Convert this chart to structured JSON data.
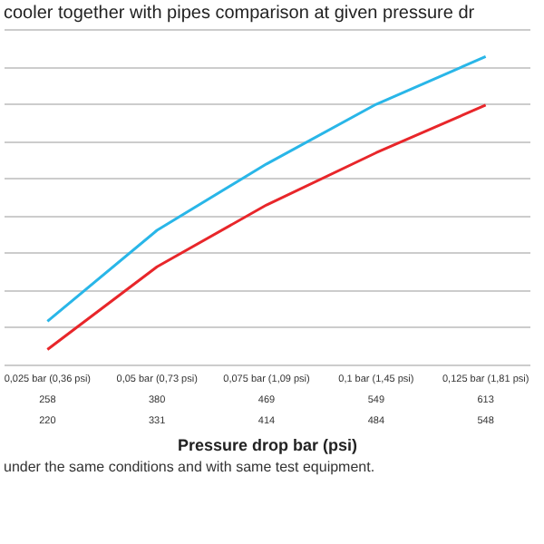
{
  "chart_data": {
    "type": "line",
    "title": "cooler together with pipes comparison at given pressure dr",
    "categories": [
      "0,025 bar (0,36 psi)",
      "0,05 bar (0,73 psi)",
      "0,075 bar (1,09 psi)",
      "0,1 bar (1,45 psi)",
      "0,125 bar (1,81 psi)"
    ],
    "series": [
      {
        "color": "#29b6e8",
        "values": [
          258,
          380,
          469,
          549,
          613
        ]
      },
      {
        "color": "#e8262a",
        "values": [
          220,
          331,
          414,
          484,
          548
        ]
      }
    ],
    "grid": "y",
    "tick_labels": "x",
    "data_labels": true,
    "legend": false,
    "xlabel": "Pressure drop bar (psi)",
    "annotations": [
      "under the same conditions and with same test equipment."
    ]
  }
}
